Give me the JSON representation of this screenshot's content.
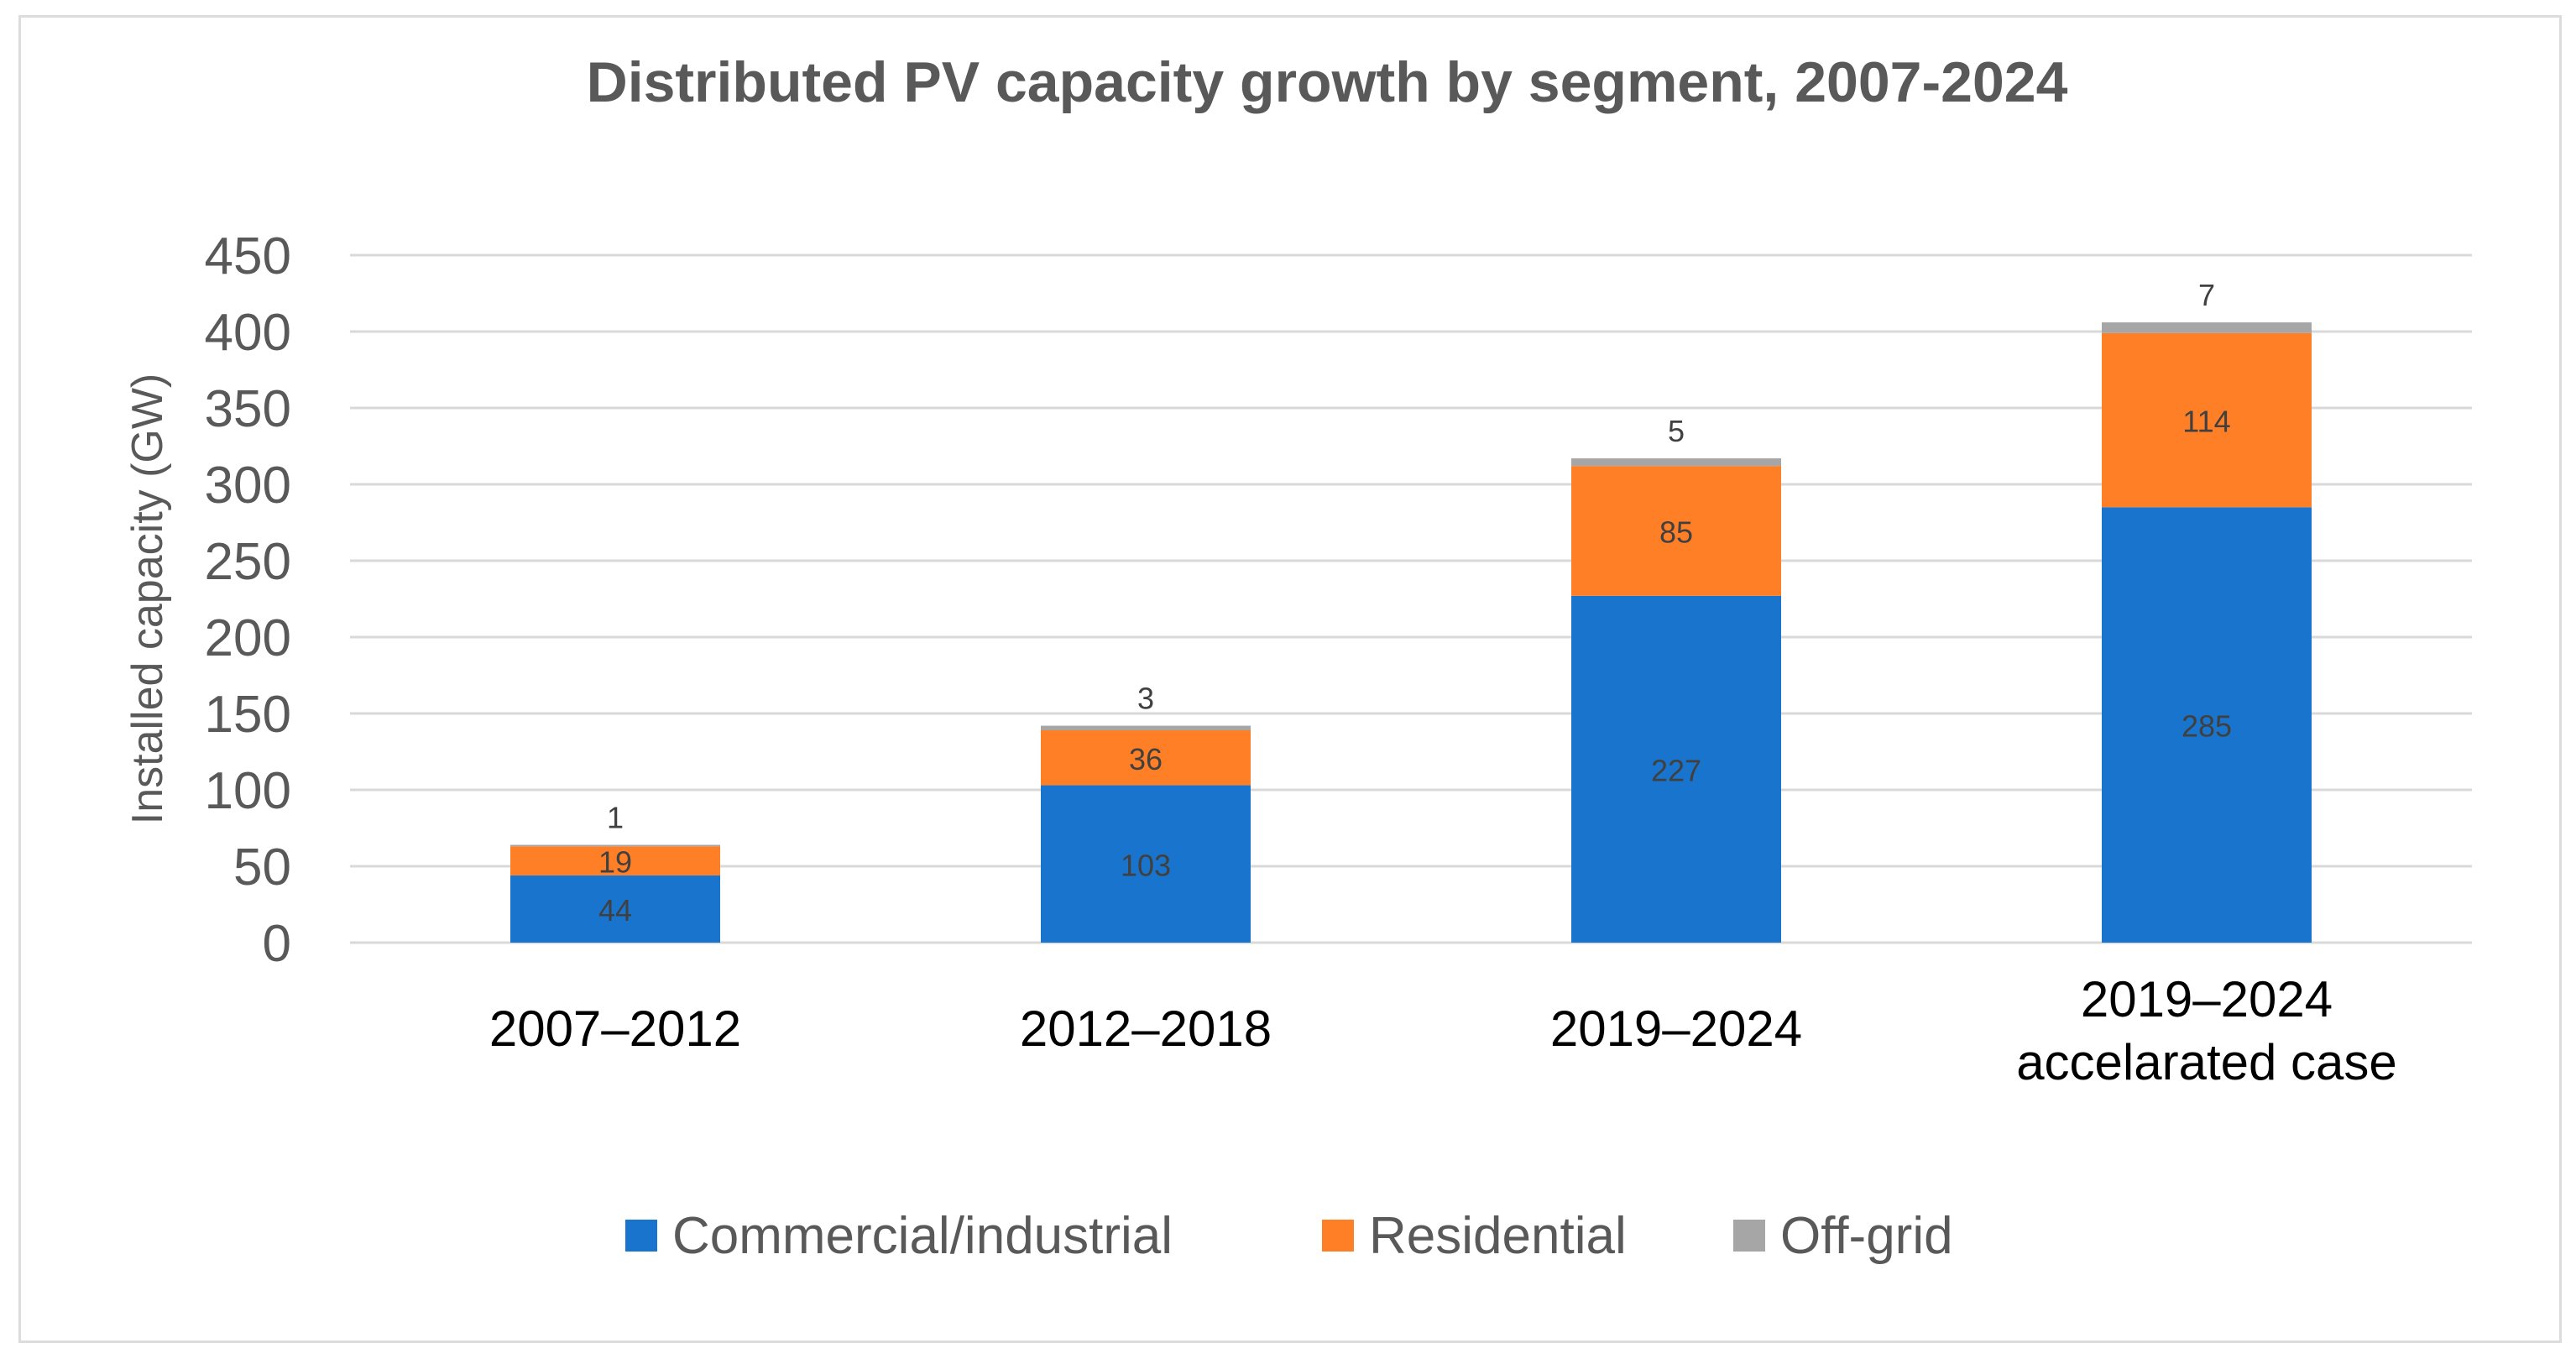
{
  "chart_data": {
    "type": "bar",
    "stacked": true,
    "title": "Distributed PV capacity growth by segment, 2007-2024",
    "xlabel": "",
    "ylabel": "Installed capacity (GW)",
    "ylim": [
      0,
      450
    ],
    "yticks": [
      0,
      50,
      100,
      150,
      200,
      250,
      300,
      350,
      400,
      450
    ],
    "grid": true,
    "legend_position": "bottom",
    "categories": [
      [
        "2007–2012"
      ],
      [
        "2012–2018"
      ],
      [
        "2019–2024"
      ],
      [
        "2019–2024",
        "accelarated case"
      ]
    ],
    "series": [
      {
        "name": "Commercial/industrial",
        "color": "#1874CD",
        "values": [
          44,
          103,
          227,
          285
        ]
      },
      {
        "name": "Residential",
        "color": "#FF7F27",
        "values": [
          19,
          36,
          85,
          114
        ]
      },
      {
        "name": "Off-grid",
        "color": "#A6A6A6",
        "values": [
          1,
          3,
          5,
          7
        ]
      }
    ]
  }
}
